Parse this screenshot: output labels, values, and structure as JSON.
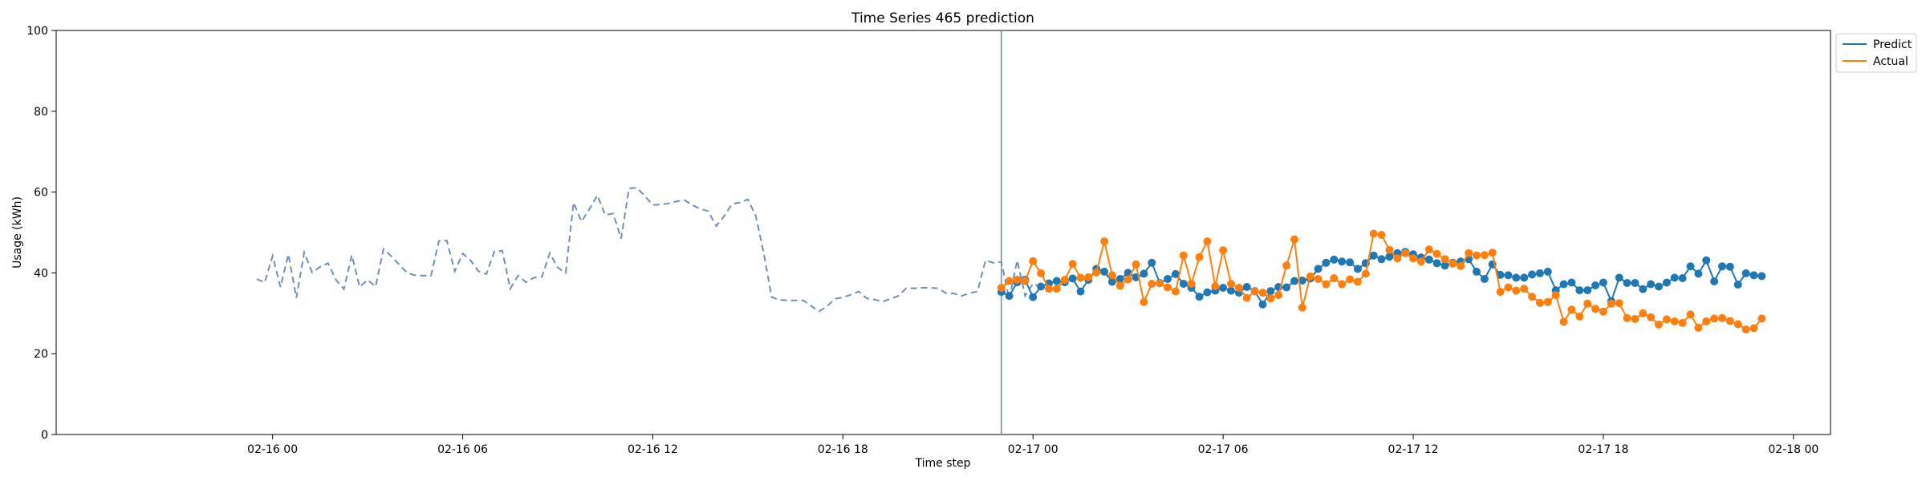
{
  "chart_data": {
    "type": "line",
    "title": "Time Series 465 prediction",
    "xlabel": "Time step",
    "ylabel": "Usage (kWh)",
    "ylim": [
      0,
      100
    ],
    "yticks": [
      0,
      20,
      40,
      60,
      80,
      100
    ],
    "xlim_hours": [
      -6.83,
      49.17
    ],
    "xticks": [
      {
        "hour": 0,
        "label": "02-16 00"
      },
      {
        "hour": 6,
        "label": "02-16 06"
      },
      {
        "hour": 12,
        "label": "02-16 12"
      },
      {
        "hour": 18,
        "label": "02-16 18"
      },
      {
        "hour": 24,
        "label": "02-17 00"
      },
      {
        "hour": 30,
        "label": "02-17 06"
      },
      {
        "hour": 36,
        "label": "02-17 12"
      },
      {
        "hour": 42,
        "label": "02-17 18"
      },
      {
        "hour": 48,
        "label": "02-18 00"
      }
    ],
    "x_start": "02-15 23:30",
    "x_interval_minutes": 15,
    "split_index": 94,
    "legend_position": "upper-right-outside",
    "series": [
      {
        "name": "Predict",
        "color": "#1f77b4",
        "start_index": 94,
        "values": [
          35.3,
          34.3,
          37.7,
          38.3,
          34.0,
          36.6,
          37.4,
          38.0,
          37.7,
          38.6,
          35.4,
          38.3,
          41.0,
          40.3,
          37.8,
          38.5,
          40.0,
          38.9,
          39.8,
          42.5,
          37.5,
          38.5,
          39.7,
          37.3,
          36.3,
          34.1,
          35.2,
          35.6,
          36.3,
          35.6,
          35.1,
          36.5,
          35.5,
          32.2,
          35.5,
          36.5,
          36.4,
          38.0,
          38.1,
          38.6,
          41.0,
          42.5,
          43.3,
          42.8,
          42.6,
          41.0,
          42.4,
          44.3,
          43.4,
          44.0,
          44.9,
          45.2,
          44.6,
          43.8,
          43.3,
          42.4,
          41.8,
          42.5,
          42.8,
          43.4,
          40.3,
          38.5,
          42.1,
          39.5,
          39.4,
          38.8,
          38.8,
          39.6,
          39.9,
          40.3,
          35.7,
          37.2,
          37.6,
          35.7,
          35.7,
          36.9,
          37.6,
          33.0,
          38.8,
          37.5,
          37.5,
          36.0,
          37.2,
          36.6,
          37.6,
          38.8,
          38.7,
          41.6,
          39.8,
          43.1,
          37.9,
          41.6,
          41.5,
          37.1,
          39.9,
          39.4,
          39.2
        ]
      },
      {
        "name": "Actual",
        "color": "#ff7f0e",
        "start_index": 94,
        "values": [
          36.3,
          38.0,
          38.3,
          38.0,
          42.9,
          39.9,
          36.1,
          36.1,
          38.3,
          42.2,
          38.8,
          38.9,
          40.1,
          47.8,
          39.4,
          36.8,
          38.4,
          42.1,
          32.8,
          37.3,
          37.4,
          36.4,
          35.4,
          44.3,
          37.3,
          43.9,
          47.8,
          36.7,
          45.6,
          37.3,
          36.3,
          33.8,
          35.4,
          35.1,
          33.7,
          34.5,
          41.8,
          48.3,
          31.4,
          39.1,
          38.5,
          37.2,
          38.7,
          37.2,
          38.4,
          37.8,
          39.8,
          49.7,
          49.4,
          45.7,
          43.6,
          44.9,
          43.6,
          42.8,
          45.8,
          44.7,
          43.4,
          42.3,
          41.7,
          44.9,
          44.3,
          44.4,
          45.0,
          35.3,
          36.4,
          35.6,
          36.1,
          34.1,
          32.6,
          32.8,
          34.5,
          27.9,
          30.9,
          29.2,
          32.4,
          31.1,
          30.4,
          32.4,
          32.5,
          28.8,
          28.6,
          30.0,
          29.0,
          27.2,
          28.5,
          28.0,
          27.6,
          29.7,
          26.4,
          28.0,
          28.7,
          28.8,
          28.1,
          27.3,
          26.0,
          26.3,
          28.7
        ]
      },
      {
        "name": "",
        "color": "#6f8fb8",
        "start_index": 0,
        "values": [
          38.5,
          37.6,
          44.2,
          36.5,
          44.6,
          33.8,
          45.1,
          40.1,
          41.5,
          42.4,
          38.3,
          36.0,
          44.4,
          36.5,
          38.3,
          36.6,
          45.9,
          44.1,
          42.0,
          40.0,
          39.4,
          39.3,
          39.3,
          47.9,
          48.0,
          40.4,
          44.8,
          43.1,
          40.4,
          39.7,
          45.3,
          45.5,
          36.1,
          39.3,
          37.7,
          38.8,
          39.0,
          44.9,
          41.3,
          40.0,
          57.4,
          52.7,
          55.8,
          59.2,
          54.3,
          54.7,
          48.5,
          60.9,
          61.1,
          59.0,
          56.8,
          56.9,
          57.2,
          57.7,
          58.0,
          56.8,
          55.8,
          55.3,
          51.6,
          54.0,
          57.1,
          57.4,
          58.2,
          54.1,
          45.0,
          34.0,
          33.3,
          33.2,
          33.2,
          33.2,
          31.8,
          30.5,
          31.7,
          33.6,
          33.9,
          34.6,
          35.4,
          33.7,
          33.4,
          32.9,
          33.6,
          34.3,
          36.2,
          36.2,
          36.3,
          36.3,
          36.2,
          35.0,
          34.9,
          34.3,
          35.0,
          35.4,
          43.1,
          42.5,
          42.7,
          33.4,
          43.1,
          34.3,
          37.4,
          36.3
        ]
      }
    ]
  }
}
